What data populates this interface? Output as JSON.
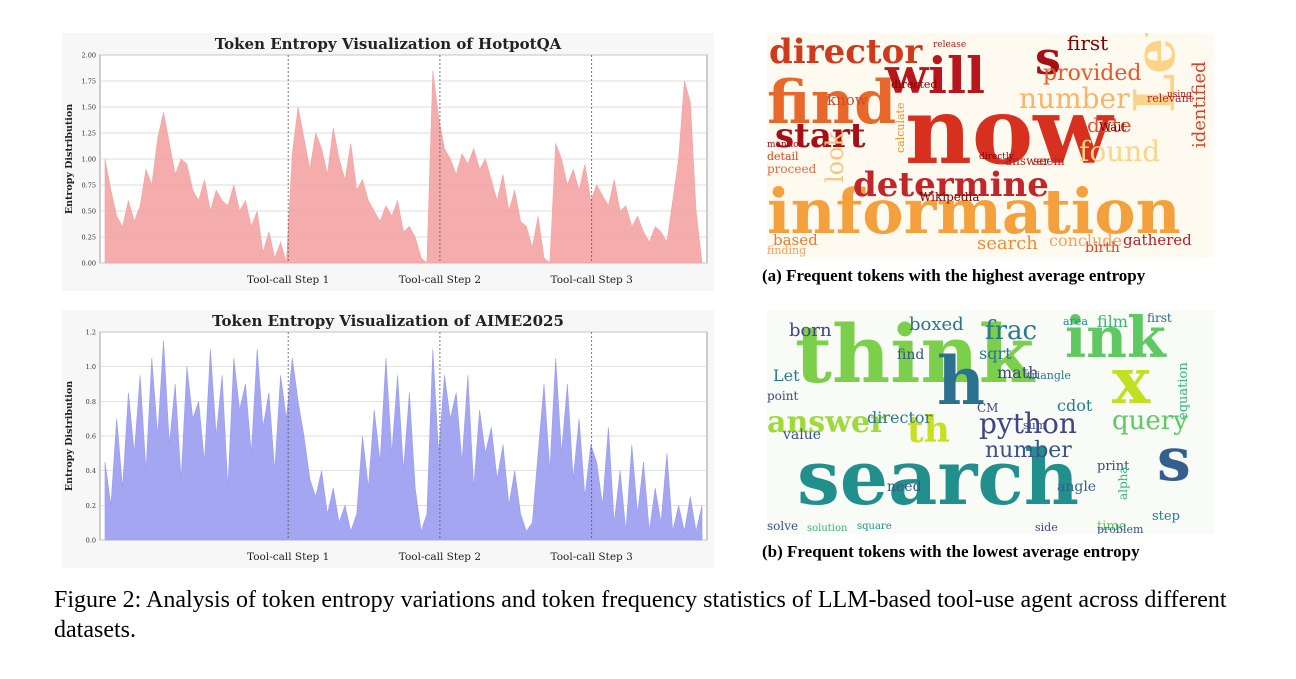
{
  "chart_data": [
    {
      "type": "area",
      "title": "Token Entropy Visualization of HotpotQA",
      "ylabel": "Entropy Distribution",
      "ylim": [
        0,
        2.0
      ],
      "yticks": [
        "0.00",
        "0.25",
        "0.50",
        "0.75",
        "1.00",
        "1.25",
        "1.50",
        "1.75",
        "2.00"
      ],
      "xlabels": [
        "Tool-call Step 1",
        "Tool-call Step 2",
        "Tool-call Step 3"
      ],
      "grid": true,
      "color": "#f4a3a3",
      "series": [
        {
          "values": [
            1.0,
            0.7,
            0.45,
            0.35,
            0.6,
            0.4,
            0.55,
            0.9,
            0.75,
            1.2,
            1.45,
            1.15,
            0.85,
            1.0,
            0.95,
            0.7,
            0.6,
            0.8,
            0.5,
            0.7,
            0.6,
            0.55,
            0.75,
            0.5,
            0.6,
            0.35,
            0.5,
            0.1,
            0.3,
            0.05,
            0.2,
            0.0,
            1.05,
            1.5,
            1.2,
            0.9,
            1.25,
            1.1,
            0.85,
            1.3,
            1.0,
            0.8,
            1.15,
            0.7,
            0.8,
            0.6,
            0.5,
            0.4,
            0.55,
            0.45,
            0.6,
            0.3,
            0.35,
            0.25,
            0.05,
            0.0,
            1.85,
            1.4,
            1.1,
            1.0,
            0.85,
            1.05,
            0.95,
            1.1,
            0.9,
            1.0,
            0.8,
            0.6,
            0.85,
            0.5,
            0.7,
            0.4,
            0.35,
            0.15,
            0.45,
            0.05,
            0.0,
            1.15,
            1.0,
            0.75,
            0.9,
            0.7,
            0.95,
            0.6,
            0.75,
            0.65,
            0.55,
            0.8,
            0.5,
            0.55,
            0.35,
            0.45,
            0.3,
            0.2,
            0.35,
            0.3,
            0.2,
            0.6,
            1.0,
            1.75,
            1.55,
            0.5,
            0.0
          ]
        }
      ]
    },
    {
      "type": "area",
      "title": "Token Entropy Visualization of AIME2025",
      "ylabel": "Entropy Distribution",
      "ylim": [
        0,
        1.2
      ],
      "yticks": [
        "0.0",
        "0.2",
        "0.4",
        "0.6",
        "0.8",
        "1.0",
        "1.2"
      ],
      "xlabels": [
        "Tool-call Step 1",
        "Tool-call Step 2",
        "Tool-call Step 3"
      ],
      "grid": true,
      "color": "#9a9cf0",
      "series": [
        {
          "values": [
            0.45,
            0.2,
            0.7,
            0.3,
            0.85,
            0.5,
            0.95,
            0.4,
            1.05,
            0.6,
            1.15,
            0.55,
            0.9,
            0.35,
            1.0,
            0.7,
            0.8,
            0.45,
            1.1,
            0.6,
            0.95,
            0.3,
            1.05,
            0.75,
            0.9,
            0.5,
            1.1,
            0.65,
            0.85,
            0.4,
            0.95,
            0.7,
            1.05,
            0.8,
            0.6,
            0.35,
            0.25,
            0.4,
            0.15,
            0.3,
            0.1,
            0.2,
            0.05,
            0.15,
            0.6,
            0.3,
            0.75,
            0.45,
            1.05,
            0.5,
            0.95,
            0.4,
            0.85,
            0.3,
            0.05,
            0.15,
            1.1,
            0.5,
            0.95,
            0.7,
            0.85,
            0.45,
            0.95,
            0.3,
            0.75,
            0.5,
            0.65,
            0.35,
            0.55,
            0.2,
            0.4,
            0.15,
            0.05,
            0.1,
            0.5,
            0.9,
            0.4,
            1.05,
            0.5,
            0.9,
            0.35,
            0.7,
            0.25,
            0.55,
            0.45,
            0.2,
            0.65,
            0.1,
            0.4,
            0.05,
            0.55,
            0.15,
            0.45,
            0.05,
            0.3,
            0.1,
            0.5,
            0.05,
            0.2,
            0.05,
            0.25,
            0.05,
            0.2
          ]
        }
      ]
    }
  ],
  "wordcloud_a": {
    "caption": "(a) Frequent tokens with the highest average entropy",
    "words": [
      {
        "text": "now",
        "size": 92,
        "color": "#d7301f"
      },
      {
        "text": "information",
        "size": 62,
        "color": "#f4a03c"
      },
      {
        "text": "find",
        "size": 60,
        "color": "#e8672b"
      },
      {
        "text": "will",
        "size": 50,
        "color": "#b8161c"
      },
      {
        "text": "Let",
        "size": 56,
        "color": "#fbd48a"
      },
      {
        "text": "s",
        "size": 46,
        "color": "#a50f15"
      },
      {
        "text": "director",
        "size": 34,
        "color": "#cf3a1c"
      },
      {
        "text": "determine",
        "size": 34,
        "color": "#c0262a"
      },
      {
        "text": "start",
        "size": 34,
        "color": "#a50f15"
      },
      {
        "text": "number",
        "size": 28,
        "color": "#f8b46a"
      },
      {
        "text": "found",
        "size": 28,
        "color": "#fbd48a"
      },
      {
        "text": "provided",
        "size": 22,
        "color": "#e35b2c"
      },
      {
        "text": "first",
        "size": 20,
        "color": "#7f0000"
      },
      {
        "text": "look",
        "size": 24,
        "color": "#f6c583"
      },
      {
        "text": "date",
        "size": 20,
        "color": "#d9532b"
      },
      {
        "text": "identified",
        "size": 18,
        "color": "#d44324"
      },
      {
        "text": "search",
        "size": 18,
        "color": "#f08a3a"
      },
      {
        "text": "conclude",
        "size": 16,
        "color": "#f3a15e"
      },
      {
        "text": "gathered",
        "size": 15,
        "color": "#b3202a"
      },
      {
        "text": "birth",
        "size": 14,
        "color": "#d9442a"
      },
      {
        "text": "based",
        "size": 15,
        "color": "#e67b34"
      },
      {
        "text": "know",
        "size": 15,
        "color": "#cc4a24"
      },
      {
        "text": "Wikipedia",
        "size": 12,
        "color": "#7f0000"
      },
      {
        "text": "proceed",
        "size": 12,
        "color": "#e4683a"
      },
      {
        "text": "answer",
        "size": 12,
        "color": "#a5261c"
      },
      {
        "text": "seem",
        "size": 12,
        "color": "#b3202a"
      },
      {
        "text": "calculate",
        "size": 11,
        "color": "#e8922e"
      },
      {
        "text": "relevant",
        "size": 11,
        "color": "#c0262a"
      },
      {
        "text": "directed",
        "size": 11,
        "color": "#7f0000"
      },
      {
        "text": "detail",
        "size": 11,
        "color": "#d44324"
      },
      {
        "text": "finding",
        "size": 11,
        "color": "#f3a15e"
      },
      {
        "text": "Wait",
        "size": 12,
        "color": "#7f0000"
      },
      {
        "text": "mention",
        "size": 9,
        "color": "#a50f15"
      },
      {
        "text": "directly",
        "size": 9,
        "color": "#7f0000"
      },
      {
        "text": "release",
        "size": 9,
        "color": "#a5261c"
      },
      {
        "text": "using",
        "size": 9,
        "color": "#a50f15"
      }
    ]
  },
  "wordcloud_b": {
    "caption": "(b) Frequent tokens with the lowest average entropy",
    "words": [
      {
        "text": "think",
        "size": 80,
        "color": "#7ccf4a"
      },
      {
        "text": "search",
        "size": 76,
        "color": "#21908c"
      },
      {
        "text": "ink",
        "size": 56,
        "color": "#5ec962"
      },
      {
        "text": "x",
        "size": 64,
        "color": "#c2df23"
      },
      {
        "text": "h",
        "size": 66,
        "color": "#2c728e"
      },
      {
        "text": "s",
        "size": 60,
        "color": "#35608d"
      },
      {
        "text": "answer",
        "size": 30,
        "color": "#9fda3a"
      },
      {
        "text": "python",
        "size": 28,
        "color": "#414487"
      },
      {
        "text": "query",
        "size": 26,
        "color": "#5ec962"
      },
      {
        "text": "th",
        "size": 36,
        "color": "#c8e020"
      },
      {
        "text": "frac",
        "size": 26,
        "color": "#2a788e"
      },
      {
        "text": "number",
        "size": 22,
        "color": "#3b528b"
      },
      {
        "text": "boxed",
        "size": 18,
        "color": "#2c728e"
      },
      {
        "text": "born",
        "size": 18,
        "color": "#414487"
      },
      {
        "text": "director",
        "size": 16,
        "color": "#2a788e"
      },
      {
        "text": "sqrt",
        "size": 16,
        "color": "#2c728e"
      },
      {
        "text": "math",
        "size": 16,
        "color": "#414487"
      },
      {
        "text": "cdot",
        "size": 16,
        "color": "#2a788e"
      },
      {
        "text": "value",
        "size": 14,
        "color": "#3b528b"
      },
      {
        "text": "find",
        "size": 14,
        "color": "#3b528b"
      },
      {
        "text": "Let",
        "size": 16,
        "color": "#2a788e"
      },
      {
        "text": "film",
        "size": 16,
        "color": "#35b779"
      },
      {
        "text": "angle",
        "size": 14,
        "color": "#35608d"
      },
      {
        "text": "need",
        "size": 14,
        "color": "#3b528b"
      },
      {
        "text": "print",
        "size": 13,
        "color": "#414487"
      },
      {
        "text": "equation",
        "size": 13,
        "color": "#35b779"
      },
      {
        "text": "time",
        "size": 13,
        "color": "#5ec962"
      },
      {
        "text": "step",
        "size": 13,
        "color": "#2a788e"
      },
      {
        "text": "solve",
        "size": 12,
        "color": "#3b528b"
      },
      {
        "text": "point",
        "size": 12,
        "color": "#414487"
      },
      {
        "text": "first",
        "size": 12,
        "color": "#35608d"
      },
      {
        "text": "triangle",
        "size": 11,
        "color": "#2a788e"
      },
      {
        "text": "alpha",
        "size": 12,
        "color": "#35b779"
      },
      {
        "text": "sum",
        "size": 11,
        "color": "#3b528b"
      },
      {
        "text": "area",
        "size": 11,
        "color": "#21908c"
      },
      {
        "text": "CM",
        "size": 12,
        "color": "#414487"
      },
      {
        "text": "problem",
        "size": 11,
        "color": "#3b528b"
      },
      {
        "text": "side",
        "size": 11,
        "color": "#414487"
      },
      {
        "text": "square",
        "size": 10,
        "color": "#21908c"
      },
      {
        "text": "solution",
        "size": 10,
        "color": "#35b779"
      }
    ]
  },
  "figure_caption": "Figure 2: Analysis of token entropy variations and token frequency statistics of LLM-based tool-use agent across different datasets."
}
